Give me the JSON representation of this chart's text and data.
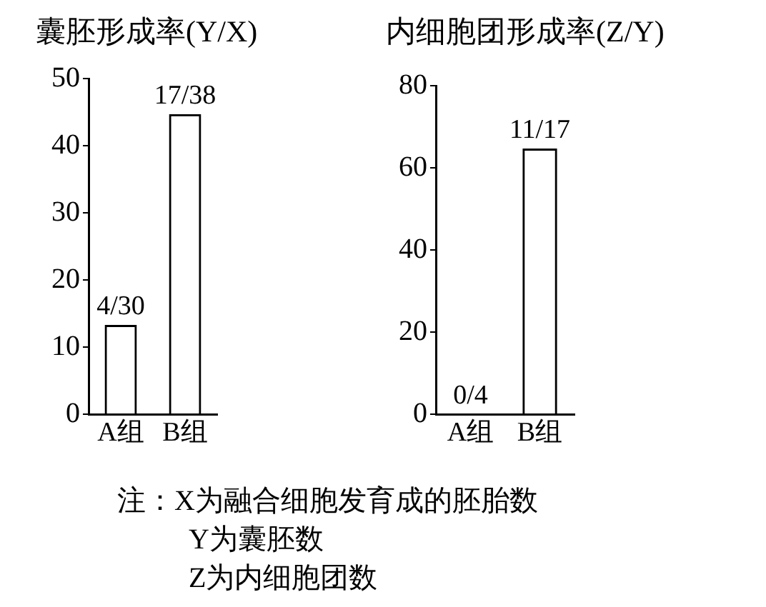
{
  "chart_data": [
    {
      "type": "bar",
      "title": "囊胚形成率(Y/X)",
      "categories": [
        "A组",
        "B组"
      ],
      "values": [
        13.3,
        44.7
      ],
      "value_labels": [
        "4/30",
        "17/38"
      ],
      "color": "#000000",
      "ylim": [
        0,
        50
      ],
      "yticks": [
        0,
        10,
        20,
        30,
        40,
        50
      ],
      "annotations": [
        "注：X为融合细胞发育成的胚胎数",
        "Y为囊胚数",
        "Z为内细胞团数"
      ]
    },
    {
      "type": "bar",
      "title": "内细胞团形成率(Z/Y)",
      "categories": [
        "A组",
        "B组"
      ],
      "values": [
        0,
        64.7
      ],
      "value_labels": [
        "0/4",
        "11/17"
      ],
      "color": "#000000",
      "ylim": [
        0,
        80
      ],
      "yticks": [
        0,
        20,
        40,
        60,
        80
      ]
    }
  ]
}
